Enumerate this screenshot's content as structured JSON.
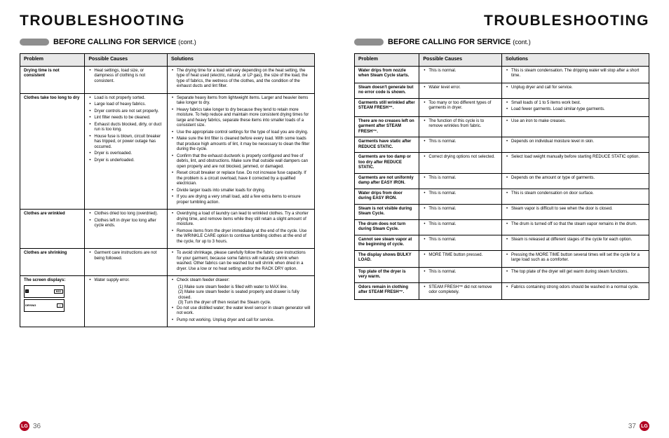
{
  "pageTitle": "TROUBLESHOOTING",
  "subtitle": "BEFORE CALLING FOR SERVICE",
  "subtitleCont": "(cont.)",
  "headers": {
    "problem": "Problem",
    "causes": "Possible Causes",
    "solutions": "Solutions"
  },
  "leftPageNum": "36",
  "rightPageNum": "37",
  "left": [
    {
      "problem": "Drying time is not consistent",
      "causes": [
        "Heat settings, load size, or dampness of clothing is not consistent."
      ],
      "solutions": [
        "The drying time for a load will vary depending on the heat setting, the type of heat used (electric, natural, or LP gas), the size of the load, the type of fabrics, the wetness of the clothes, and the condition of the exhaust ducts and lint filter."
      ]
    },
    {
      "problem": "Clothes take too long to dry",
      "causes": [
        "Load is not properly sorted.",
        "Large load of heavy fabrics.",
        "Dryer controls are not set properly.",
        "Lint filter needs to be cleaned.",
        "Exhaust ducts blocked, dirty, or duct run is too long.",
        "House fuse is blown, circuit breaker has tripped, or power outage has occurred.",
        "Dryer is overloaded.",
        "Dryer is underloaded."
      ],
      "solutions": [
        "Separate heavy items from lightweight items. Larger and heavier items take longer to dry.",
        "Heavy fabrics take longer to dry because they tend to retain more moisture. To help reduce and maintain more consistent drying times for large and heavy fabrics, separate these items into smaller loads of a consistent size.",
        "Use the appropriate control settings for the type of load you are drying.",
        "Make sure the lint filter is cleaned before every load. With some loads that produce high amounts of lint, it may be necessary to clean the filter during the cycle.",
        "Confirm that the exhaust ductwork is properly configured and free of debris, lint, and obstructions. Make sure that outside wall dampers can open properly and are not blocked, jammed, or damaged.",
        "Reset circuit breaker or replace fuse. Do not increase fuse capacity. If the problem is a circuit overload, have it corrected by a qualified electrician.",
        "Divide larger loads into smaller loads for drying.",
        "If you are drying a very small load, add a few extra items to ensure proper tumbling action."
      ]
    },
    {
      "problem": "Clothes are wrinkled",
      "causes": [
        "Clothes dried too long (overdried).",
        "Clothes left in dryer too long after cycle ends."
      ],
      "solutions": [
        "Overdrying a load of laundry can lead to wrinkled clothes. Try a shorter drying time, and remove items while they still retain a slight amount of moisture.",
        "Remove items from the dryer immediately at the end of the cycle. Use the WRINKLE CARE option to continue tumbling clothes at the end of the cycle, for up to 3 hours."
      ]
    },
    {
      "problem": "Clothes are shrinking",
      "causes": [
        "Garment care instructions are not being followed."
      ],
      "solutions": [
        "To avoid shrinkage, please carefully follow the fabric care instructions for your garment, because some fabrics will naturally shrink when washed. Other fabrics can be washed but will shrink when dried in a dryer. Use a low or no heat setting and/or the RACK DRY option."
      ]
    },
    {
      "problem": "The screen displays:",
      "causes": [
        "Water supply error."
      ],
      "screenBoxes": true,
      "solutions": [
        "Check steam feeder drawer:"
      ],
      "subSolutions": [
        "(1) Make sure steam feeder is filled with water to MAX line.",
        "(2) Make sure steam feeder is seated properly and drawer is fully closed.",
        "(3) Turn the dryer off then restart the Steam cycle."
      ],
      "extraSolutions": [
        "Do not use distilled water; the water level sensor in steam generator will not work.",
        "Pump not working. Unplug dryer and call for service."
      ]
    }
  ],
  "right": [
    {
      "problem": "Water drips from nozzle when Steam Cycle starts.",
      "causes": [
        "This is normal."
      ],
      "solutions": [
        "This is steam condensation. The dripping water will stop after a short time."
      ]
    },
    {
      "problem": "Steam doesn't generate but no error code is shown.",
      "causes": [
        "Water level error."
      ],
      "solutions": [
        "Unplug dryer and call for service."
      ]
    },
    {
      "problem": "Garments still wrinkled after STEAM FRESH™.",
      "causes": [
        "Too many or too different types of garments in dryer."
      ],
      "solutions": [
        "Small loads of 1 to 5 items work best.",
        "Load fewer garments. Load similar-type garments."
      ]
    },
    {
      "problem": "There are no creases left on garment after STEAM FRESH™.",
      "causes": [
        "The function of this cycle is to remove wrinkles from fabric."
      ],
      "solutions": [
        "Use an iron to make creases."
      ]
    },
    {
      "problem": "Garments have static after REDUCE STATIC.",
      "causes": [
        "This is normal."
      ],
      "solutions": [
        "Depends on individual moisture level in skin."
      ]
    },
    {
      "problem": "Garments are too damp or too dry after REDUCE STATIC.",
      "causes": [
        "Correct drying options not selected."
      ],
      "solutions": [
        "Select load weight manually before starting REDUCE STATIC option."
      ]
    },
    {
      "problem": "Garments are not uniformly damp after EASY IRON.",
      "causes": [
        "This is normal."
      ],
      "solutions": [
        "Depends on the amount or type of garments."
      ]
    },
    {
      "problem": "Water drips from door during EASY IRON.",
      "causes": [
        "This is normal."
      ],
      "solutions": [
        "This is steam condensation on door surface."
      ]
    },
    {
      "problem": "Steam is not visible during Steam Cycle.",
      "causes": [
        "This is normal."
      ],
      "solutions": [
        "Steam vapor is difficult to see when the door is closed."
      ]
    },
    {
      "problem": "The drum does not turn during Steam Cycle.",
      "causes": [
        "This is normal."
      ],
      "solutions": [
        "The drum is turned off so that the steam vapor remains in the drum."
      ]
    },
    {
      "problem": "Cannot see steam vapor at the beginning of cycle.",
      "causes": [
        "This is normal."
      ],
      "solutions": [
        "Steam is released at different stages of the cycle for each option."
      ]
    },
    {
      "problem": "The display shows BULKY LOAD.",
      "causes": [
        "MORE TIME button pressed."
      ],
      "solutions": [
        "Pressing the MORE TIME button several times will set the cycle for a large load such as a comforter."
      ]
    },
    {
      "problem": "Top plate of the dryer is very warm.",
      "causes": [
        "This is normal."
      ],
      "solutions": [
        "The top plate of the dryer will get warm during steam functions."
      ]
    },
    {
      "problem": "Odors remain in clothing after STEAM FRESH™.",
      "causes": [
        "STEAM FRESH™ did not remove odor completely."
      ],
      "solutions": [
        "Fabrics containing strong odors should be washed in a normal cycle."
      ]
    }
  ]
}
